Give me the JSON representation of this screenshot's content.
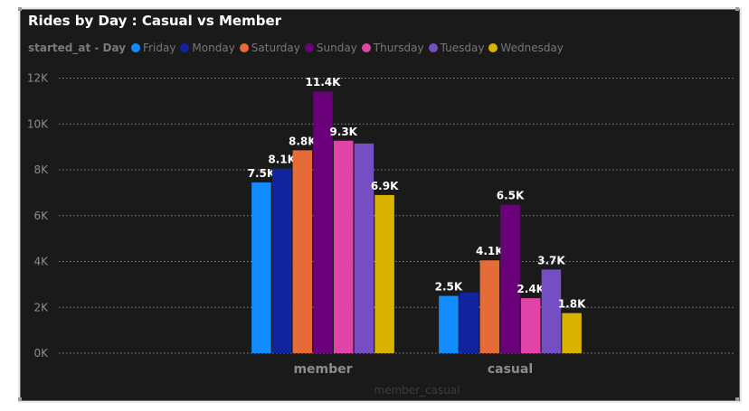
{
  "chart_data": {
    "type": "bar",
    "title": "Rides by Day : Casual vs Member",
    "legend_title": "started_at - Day",
    "xlabel": "member_casual",
    "ylabel": "",
    "ylim": [
      0,
      12000
    ],
    "yticks": [
      0,
      2000,
      4000,
      6000,
      8000,
      10000,
      12000
    ],
    "ytick_labels": [
      "0K",
      "2K",
      "4K",
      "6K",
      "8K",
      "10K",
      "12K"
    ],
    "grid": true,
    "legend_position": "top-left",
    "categories": [
      "member",
      "casual"
    ],
    "series": [
      {
        "name": "Friday",
        "color": "#118dff",
        "values": [
          7450,
          2500
        ],
        "labels": [
          "7.5K",
          "2.5K"
        ]
      },
      {
        "name": "Monday",
        "color": "#12239e",
        "values": [
          8050,
          2650
        ],
        "labels": [
          "8.1K",
          ""
        ]
      },
      {
        "name": "Saturday",
        "color": "#e66c37",
        "values": [
          8850,
          4050
        ],
        "labels": [
          "8.8K",
          "4.1K"
        ]
      },
      {
        "name": "Sunday",
        "color": "#6b007b",
        "values": [
          11420,
          6480
        ],
        "labels": [
          "11.4K",
          "6.5K"
        ]
      },
      {
        "name": "Thursday",
        "color": "#e044a7",
        "values": [
          9270,
          2400
        ],
        "labels": [
          "9.3K",
          "2.4K"
        ]
      },
      {
        "name": "Tuesday",
        "color": "#744ec2",
        "values": [
          9150,
          3650
        ],
        "labels": [
          "",
          "3.7K"
        ]
      },
      {
        "name": "Wednesday",
        "color": "#d9b300",
        "values": [
          6900,
          1750
        ],
        "labels": [
          "6.9K",
          "1.8K"
        ]
      }
    ]
  }
}
